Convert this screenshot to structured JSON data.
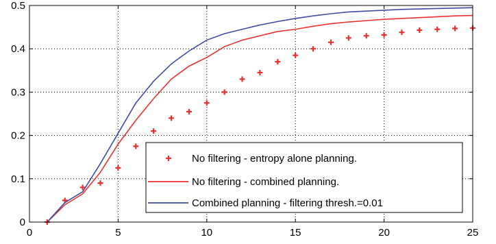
{
  "chart_data": {
    "type": "line",
    "xlim": [
      0,
      25
    ],
    "ylim": [
      0,
      0.5
    ],
    "x_ticks": [
      0,
      5,
      10,
      15,
      20,
      25
    ],
    "y_ticks": [
      0,
      0.1,
      0.2,
      0.3,
      0.4,
      0.5
    ],
    "grid": true,
    "grid_style": "dotted",
    "legend_position": "bottom-right",
    "series": [
      {
        "name": "No filtering - entropy alone planning.",
        "style": "markers",
        "color": "#e8312f",
        "x": [
          1,
          2,
          3,
          4,
          5,
          6,
          7,
          8,
          9,
          10,
          11,
          12,
          13,
          14,
          15,
          16,
          17,
          18,
          19,
          20,
          21,
          22,
          23,
          24,
          25
        ],
        "y": [
          0.0,
          0.05,
          0.08,
          0.09,
          0.125,
          0.175,
          0.21,
          0.24,
          0.255,
          0.275,
          0.3,
          0.33,
          0.345,
          0.37,
          0.385,
          0.4,
          0.415,
          0.425,
          0.43,
          0.432,
          0.438,
          0.443,
          0.445,
          0.447,
          0.448
        ]
      },
      {
        "name": "No filtering - combined planning.",
        "style": "line",
        "color": "#e8312f",
        "x": [
          1,
          2,
          3,
          4,
          5,
          6,
          7,
          8,
          9,
          10,
          11,
          12,
          13,
          14,
          15,
          16,
          17,
          18,
          19,
          20,
          21,
          22,
          23,
          24,
          25
        ],
        "y": [
          0.0,
          0.04,
          0.065,
          0.115,
          0.18,
          0.235,
          0.285,
          0.33,
          0.36,
          0.38,
          0.405,
          0.42,
          0.43,
          0.44,
          0.445,
          0.452,
          0.458,
          0.462,
          0.465,
          0.468,
          0.47,
          0.472,
          0.474,
          0.476,
          0.477
        ]
      },
      {
        "name": "Combined planning - filtering thresh.=0.01",
        "style": "line",
        "color": "#3f4c9e",
        "x": [
          1,
          2,
          3,
          4,
          5,
          6,
          7,
          8,
          9,
          10,
          11,
          12,
          13,
          14,
          15,
          16,
          17,
          18,
          19,
          20,
          21,
          22,
          23,
          24,
          25
        ],
        "y": [
          0.0,
          0.045,
          0.07,
          0.135,
          0.205,
          0.275,
          0.325,
          0.365,
          0.395,
          0.42,
          0.435,
          0.445,
          0.455,
          0.463,
          0.47,
          0.476,
          0.481,
          0.485,
          0.487,
          0.489,
          0.491,
          0.492,
          0.493,
          0.494,
          0.495
        ]
      }
    ]
  }
}
